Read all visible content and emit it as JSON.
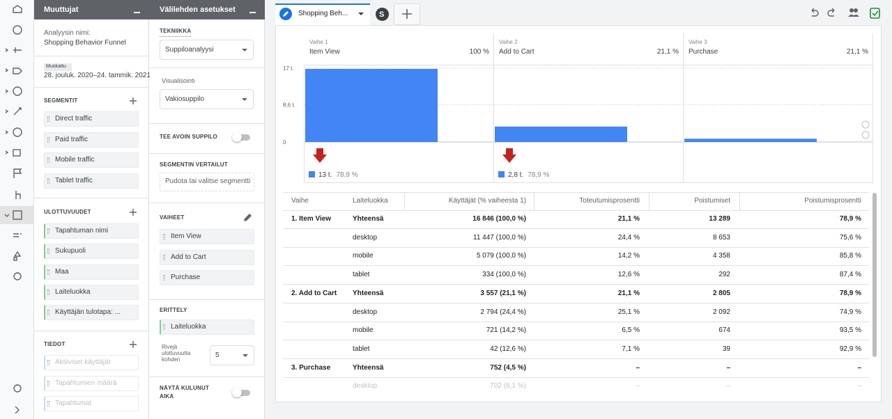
{
  "variables_panel": {
    "title": "Muuttujat",
    "analysis_name_label": "Analyysin nimi:",
    "analysis_name": "Shopping Behavior Funnel",
    "date_badge": "Muokattu",
    "date_range": "28. jouluk. 2020–24. tammik. 2021",
    "segments_title": "SEGMENTIT",
    "segments": [
      "Direct traffic",
      "Paid traffic",
      "Mobile traffic",
      "Tablet traffic"
    ],
    "dimensions_title": "ULOTTUVUUDET",
    "dimensions": [
      "Tapahtuman nimi",
      "Sukupuoli",
      "Maa",
      "Laiteluokka",
      "Käyttäjän tulotapa: ..."
    ],
    "metrics_title": "TIEDOT",
    "metrics": [
      "Aktiiviset käyttäjät",
      "Tapahtumien määrä",
      "Tapahtumat"
    ]
  },
  "settings_panel": {
    "title": "Välilehden asetukset",
    "technique_label": "TEKNIIKKA",
    "technique": "Suppiloanalyysi",
    "visualization_label": "Visualisointi",
    "visualization": "Vakiosuppilo",
    "open_funnel_label": "TEE AVOIN SUPPILO",
    "segment_comparisons_label": "SEGMENTIN VERTAILUT",
    "segment_drop": "Pudota tai valitse segmentti",
    "steps_label": "VAIHEET",
    "steps": [
      "Item View",
      "Add to Cart",
      "Purchase"
    ],
    "breakdown_label": "ERITTELY",
    "breakdown": "Laiteluokka",
    "rows_label": "Rivejä ulottuvuutta kohden",
    "rows_value": "5",
    "elapsed_label": "NÄYTÄ KULUNUT AIKA"
  },
  "tabs": {
    "active": "Shopping Beh...",
    "avatar": "S"
  },
  "funnel": {
    "type": "bar",
    "stages": [
      "Vaihe 1",
      "Vaihe 2",
      "Vaihe 3"
    ],
    "categories": [
      "Item View",
      "Add to Cart",
      "Purchase"
    ],
    "rates": [
      "100 %",
      "21,1 %",
      "21,1 %"
    ],
    "values": [
      16846,
      3557,
      752
    ],
    "color": "#4285f4",
    "ylim": [
      0,
      17000
    ],
    "yticks": [
      {
        "value": 17000,
        "label": "17 t."
      },
      {
        "value": 8600,
        "label": "8,6 t."
      },
      0
    ],
    "abandon_labels": [
      "13 t.",
      "2,8 t."
    ],
    "abandon_rates": [
      "78,9 %",
      "78,9 %"
    ]
  },
  "table": {
    "headers": {
      "step": "Vaihe",
      "device": "Laiteluokka",
      "users": "Käyttäjät (% vaiheesta 1)",
      "completion": "Toteutumisprosentti",
      "drops": "Poistumiset",
      "drop_rate": "Poistumisprosentti"
    },
    "rows": [
      {
        "step": "1. Item View",
        "device": "Yhteensä",
        "users": "16 846 (100,0 %)",
        "completion": "21,1 %",
        "drops": "13 289",
        "drop_rate": "78,9 %"
      },
      {
        "device": "desktop",
        "users": "11 447 (100,0 %)",
        "completion": "24,4 %",
        "drops": "8 653",
        "drop_rate": "75,6 %"
      },
      {
        "device": "mobile",
        "users": "5 079 (100,0 %)",
        "completion": "14,2 %",
        "drops": "4 358",
        "drop_rate": "85,8 %"
      },
      {
        "device": "tablet",
        "users": "334 (100,0 %)",
        "completion": "12,6 %",
        "drops": "292",
        "drop_rate": "87,4 %"
      },
      {
        "step": "2. Add to Cart",
        "device": "Yhteensä",
        "users": "3 557 (21,1 %)",
        "completion": "21,1 %",
        "drops": "2 805",
        "drop_rate": "78,9 %"
      },
      {
        "device": "desktop",
        "users": "2 794 (24,4 %)",
        "completion": "25,1 %",
        "drops": "2 092",
        "drop_rate": "74,9 %"
      },
      {
        "device": "mobile",
        "users": "721 (14,2 %)",
        "completion": "6,5 %",
        "drops": "674",
        "drop_rate": "93,5 %"
      },
      {
        "device": "tablet",
        "users": "42 (12,6 %)",
        "completion": "7,1 %",
        "drops": "39",
        "drop_rate": "92,9 %"
      },
      {
        "step": "3. Purchase",
        "device": "Yhteensä",
        "users": "752 (4,5 %)",
        "completion": "–",
        "drops": "–",
        "drop_rate": "–"
      },
      {
        "device": "desktop",
        "users": "702 (6,1 %)",
        "completion": "–",
        "drops": "–",
        "drop_rate": "–"
      }
    ]
  }
}
